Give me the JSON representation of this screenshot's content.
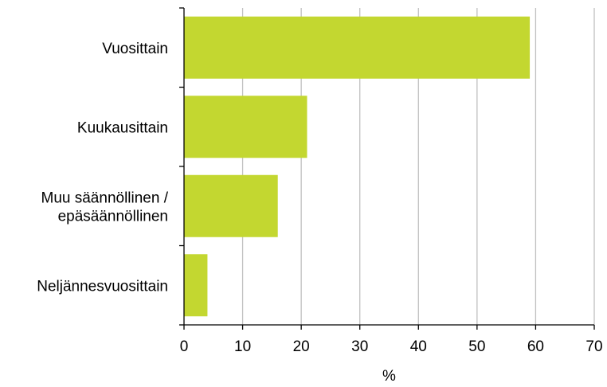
{
  "chart_data": {
    "type": "bar",
    "orientation": "horizontal",
    "categories": [
      [
        "Vuosittain"
      ],
      [
        "Kuukausittain"
      ],
      [
        "Muu säännöllinen /",
        "epäsäännöllinen"
      ],
      [
        "Neljännesvuosittain"
      ]
    ],
    "values": [
      59,
      21,
      16,
      4
    ],
    "xlabel": "%",
    "xlim": [
      0,
      70
    ],
    "xticks": [
      0,
      10,
      20,
      30,
      40,
      50,
      60,
      70
    ],
    "grid": "vertical",
    "legend": "none",
    "colors": {
      "bar": "#c3d730",
      "grid": "#bfbfbf",
      "axis": "#000000"
    }
  }
}
